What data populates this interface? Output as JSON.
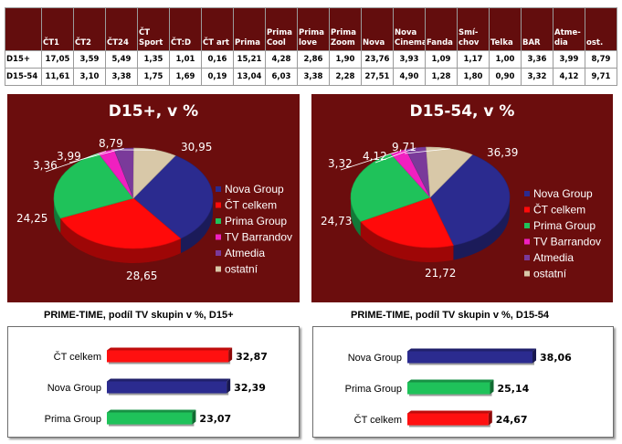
{
  "table": {
    "columns": [
      "ČT1",
      "ČT2",
      "ČT24",
      "ČT Sport",
      "ČT:D",
      "ČT art",
      "Prima",
      "Prima Cool",
      "Prima love",
      "Prima Zoom",
      "Nova",
      "Nova Cinema",
      "Fanda",
      "Smí-chov",
      "Telka",
      "BAR",
      "Atme-dia",
      "ost."
    ],
    "rows": [
      {
        "label": "D15+",
        "values": [
          "17,05",
          "3,59",
          "5,49",
          "1,35",
          "1,01",
          "0,16",
          "15,21",
          "4,28",
          "2,86",
          "1,90",
          "23,76",
          "3,93",
          "1,09",
          "1,17",
          "1,00",
          "3,36",
          "3,99",
          "8,79"
        ]
      },
      {
        "label": "D15-54",
        "values": [
          "11,61",
          "3,10",
          "3,38",
          "1,75",
          "1,69",
          "0,19",
          "13,04",
          "6,03",
          "3,38",
          "2,28",
          "27,51",
          "4,90",
          "1,28",
          "1,80",
          "0,90",
          "3,32",
          "4,12",
          "9,71"
        ]
      }
    ]
  },
  "chart_data": [
    {
      "type": "pie",
      "title": "D15+, v %",
      "labels": [
        "Nova Group",
        "ČT celkem",
        "Prima Group",
        "TV Barrandov",
        "Atmedia",
        "ostatní"
      ],
      "values": [
        30.95,
        28.65,
        24.25,
        3.36,
        3.99,
        8.79
      ],
      "value_labels": [
        "30,95",
        "28,65",
        "24,25",
        "3,36",
        "3,99",
        "8,79"
      ],
      "colors": [
        "#2b2b8f",
        "#ff0a0a",
        "#1fc25a",
        "#f020c0",
        "#7a3a9a",
        "#d8c8a8"
      ],
      "legend": "right"
    },
    {
      "type": "pie",
      "title": "D15-54, v %",
      "labels": [
        "Nova Group",
        "ČT celkem",
        "Prima Group",
        "TV Barrandov",
        "Atmedia",
        "ostatní"
      ],
      "values": [
        36.39,
        21.72,
        24.73,
        3.32,
        4.12,
        9.71
      ],
      "value_labels": [
        "36,39",
        "21,72",
        "24,73",
        "3,32",
        "4,12",
        "9,71"
      ],
      "colors": [
        "#2b2b8f",
        "#ff0a0a",
        "#1fc25a",
        "#f020c0",
        "#7a3a9a",
        "#d8c8a8"
      ],
      "legend": "right"
    },
    {
      "type": "bar",
      "orientation": "horizontal",
      "title": "PRIME-TIME, podíl TV skupin v %, D15+",
      "categories": [
        "ČT celkem",
        "Nova Group",
        "Prima Group"
      ],
      "values": [
        32.87,
        32.39,
        23.07
      ],
      "value_labels": [
        "32,87",
        "32,39",
        "23,07"
      ],
      "colors": [
        "#ff1010",
        "#2b2b8f",
        "#1fc25a"
      ]
    },
    {
      "type": "bar",
      "orientation": "horizontal",
      "title": "PRIME-TIME, podíl TV skupin v %, D15-54",
      "categories": [
        "Nova Group",
        "Prima Group",
        "ČT celkem"
      ],
      "values": [
        38.06,
        25.14,
        24.67
      ],
      "value_labels": [
        "38,06",
        "25,14",
        "24,67"
      ],
      "colors": [
        "#2b2b8f",
        "#1fc25a",
        "#ff1010"
      ]
    }
  ]
}
